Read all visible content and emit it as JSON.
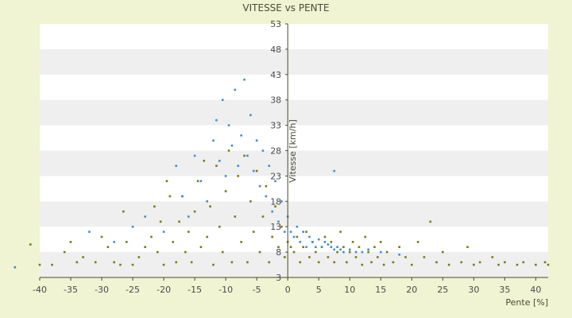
{
  "chart_data": {
    "type": "scatter",
    "title": "VITESSE vs PENTE",
    "xlabel": "Pente [%]",
    "ylabel": "Vitesse [km/h]",
    "xlim": [
      -40,
      42
    ],
    "ylim": [
      3,
      53
    ],
    "x_ticks": [
      "-40",
      "-35",
      "-30",
      "-25",
      "-20",
      "-15",
      "-10",
      "-5",
      "0",
      "5",
      "10",
      "15",
      "20",
      "25",
      "30",
      "35",
      "40"
    ],
    "y_ticks": [
      "3",
      "8",
      "13",
      "18",
      "23",
      "28",
      "33",
      "38",
      "43",
      "48",
      "53"
    ],
    "grid": "horizontal bands",
    "series": [
      {
        "color": "#7a7a10",
        "description": "olive points",
        "points": [
          [
            -44,
            5
          ],
          [
            -41.5,
            9.5
          ],
          [
            -40,
            5.5
          ],
          [
            -38,
            5.5
          ],
          [
            -36,
            8
          ],
          [
            -35,
            10
          ],
          [
            -34,
            6
          ],
          [
            -33,
            7
          ],
          [
            -31,
            6
          ],
          [
            -30,
            11
          ],
          [
            -29,
            9
          ],
          [
            -28,
            6
          ],
          [
            -27,
            5.5
          ],
          [
            -26.5,
            16
          ],
          [
            -26,
            10
          ],
          [
            -25,
            5.5
          ],
          [
            -24,
            7
          ],
          [
            -23,
            9
          ],
          [
            -22,
            11
          ],
          [
            -21.5,
            17
          ],
          [
            -21,
            8
          ],
          [
            -20.5,
            14
          ],
          [
            -20,
            5.5
          ],
          [
            -19.5,
            22
          ],
          [
            -19,
            19
          ],
          [
            -18.5,
            10
          ],
          [
            -18,
            6
          ],
          [
            -17.5,
            14
          ],
          [
            -17,
            19
          ],
          [
            -16.5,
            8
          ],
          [
            -16,
            12
          ],
          [
            -15.5,
            6
          ],
          [
            -15,
            16
          ],
          [
            -14.5,
            22
          ],
          [
            -14,
            9
          ],
          [
            -13.5,
            26
          ],
          [
            -13,
            11
          ],
          [
            -12.5,
            17
          ],
          [
            -12,
            5.5
          ],
          [
            -11.5,
            25
          ],
          [
            -11,
            13
          ],
          [
            -10.5,
            8
          ],
          [
            -10,
            20
          ],
          [
            -9.5,
            28
          ],
          [
            -9,
            6
          ],
          [
            -8.5,
            15
          ],
          [
            -8,
            23
          ],
          [
            -7.5,
            10
          ],
          [
            -7,
            27
          ],
          [
            -6.5,
            6
          ],
          [
            -6,
            18
          ],
          [
            -5.5,
            12
          ],
          [
            -5,
            24
          ],
          [
            -4.5,
            8
          ],
          [
            -4,
            15
          ],
          [
            -3.5,
            21
          ],
          [
            -3,
            6
          ],
          [
            -2.5,
            11
          ],
          [
            -2,
            17
          ],
          [
            -1.5,
            9
          ],
          [
            -1,
            13
          ],
          [
            -0.5,
            7
          ],
          [
            0,
            10
          ],
          [
            0.5,
            9
          ],
          [
            1,
            8
          ],
          [
            1.5,
            11
          ],
          [
            2,
            6
          ],
          [
            2.5,
            9
          ],
          [
            3,
            12
          ],
          [
            3.5,
            7
          ],
          [
            4,
            10
          ],
          [
            4.5,
            8
          ],
          [
            5,
            6
          ],
          [
            5.5,
            9
          ],
          [
            6,
            11
          ],
          [
            6.5,
            7
          ],
          [
            7,
            10
          ],
          [
            7.5,
            6
          ],
          [
            8,
            8
          ],
          [
            8.5,
            12
          ],
          [
            9,
            9
          ],
          [
            9.5,
            6
          ],
          [
            10,
            8
          ],
          [
            10.5,
            10
          ],
          [
            11,
            7
          ],
          [
            11.5,
            9
          ],
          [
            12,
            5.5
          ],
          [
            12.5,
            11
          ],
          [
            13,
            8
          ],
          [
            13.5,
            6
          ],
          [
            14,
            9
          ],
          [
            14.5,
            7
          ],
          [
            15,
            10
          ],
          [
            15.5,
            5.5
          ],
          [
            16,
            8
          ],
          [
            17,
            6
          ],
          [
            18,
            9
          ],
          [
            19,
            7
          ],
          [
            20,
            5.5
          ],
          [
            21,
            10
          ],
          [
            22,
            7
          ],
          [
            23,
            14
          ],
          [
            24,
            6
          ],
          [
            25,
            8
          ],
          [
            26,
            5.5
          ],
          [
            28,
            6
          ],
          [
            29,
            9
          ],
          [
            30,
            5.5
          ],
          [
            31,
            6
          ],
          [
            33,
            7
          ],
          [
            34,
            5.5
          ],
          [
            35,
            6
          ],
          [
            37,
            5.5
          ],
          [
            38,
            6
          ],
          [
            40,
            5.5
          ],
          [
            41.5,
            6
          ],
          [
            42,
            5.5
          ]
        ]
      },
      {
        "color": "#3a8fd8",
        "description": "blue points",
        "points": [
          [
            -44,
            5
          ],
          [
            -32,
            12
          ],
          [
            -28,
            10
          ],
          [
            -25,
            13
          ],
          [
            -23,
            15
          ],
          [
            -20,
            12
          ],
          [
            -18,
            25
          ],
          [
            -17,
            19
          ],
          [
            -16,
            15
          ],
          [
            -15,
            27
          ],
          [
            -14,
            22
          ],
          [
            -13,
            18
          ],
          [
            -12,
            30
          ],
          [
            -11.5,
            34
          ],
          [
            -11,
            26
          ],
          [
            -10.5,
            38
          ],
          [
            -10,
            23
          ],
          [
            -9.5,
            33
          ],
          [
            -9,
            29
          ],
          [
            -8.5,
            40
          ],
          [
            -8,
            25
          ],
          [
            -7.5,
            31
          ],
          [
            -7,
            42
          ],
          [
            -6.5,
            27
          ],
          [
            -6,
            35
          ],
          [
            -5.5,
            24
          ],
          [
            -5,
            30
          ],
          [
            -4.5,
            21
          ],
          [
            -4,
            28
          ],
          [
            -3.5,
            19
          ],
          [
            -3,
            25
          ],
          [
            -2.5,
            16
          ],
          [
            -2,
            22
          ],
          [
            -1.5,
            14
          ],
          [
            -1,
            18
          ],
          [
            -0.5,
            12
          ],
          [
            0,
            15
          ],
          [
            0.5,
            12
          ],
          [
            1,
            11
          ],
          [
            1.5,
            13
          ],
          [
            2,
            10
          ],
          [
            2.5,
            12
          ],
          [
            3,
            9
          ],
          [
            3.5,
            11
          ],
          [
            4,
            10
          ],
          [
            4.5,
            9
          ],
          [
            5,
            10.5
          ],
          [
            5.5,
            9
          ],
          [
            6,
            10
          ],
          [
            6.5,
            9.5
          ],
          [
            7,
            9
          ],
          [
            7.5,
            8.5
          ],
          [
            8,
            9
          ],
          [
            8.5,
            8.5
          ],
          [
            9,
            8
          ],
          [
            10,
            8.5
          ],
          [
            11,
            8
          ],
          [
            12,
            8
          ],
          [
            13,
            8.5
          ],
          [
            15,
            8
          ],
          [
            18,
            7.5
          ],
          [
            7.5,
            24
          ]
        ]
      }
    ]
  }
}
